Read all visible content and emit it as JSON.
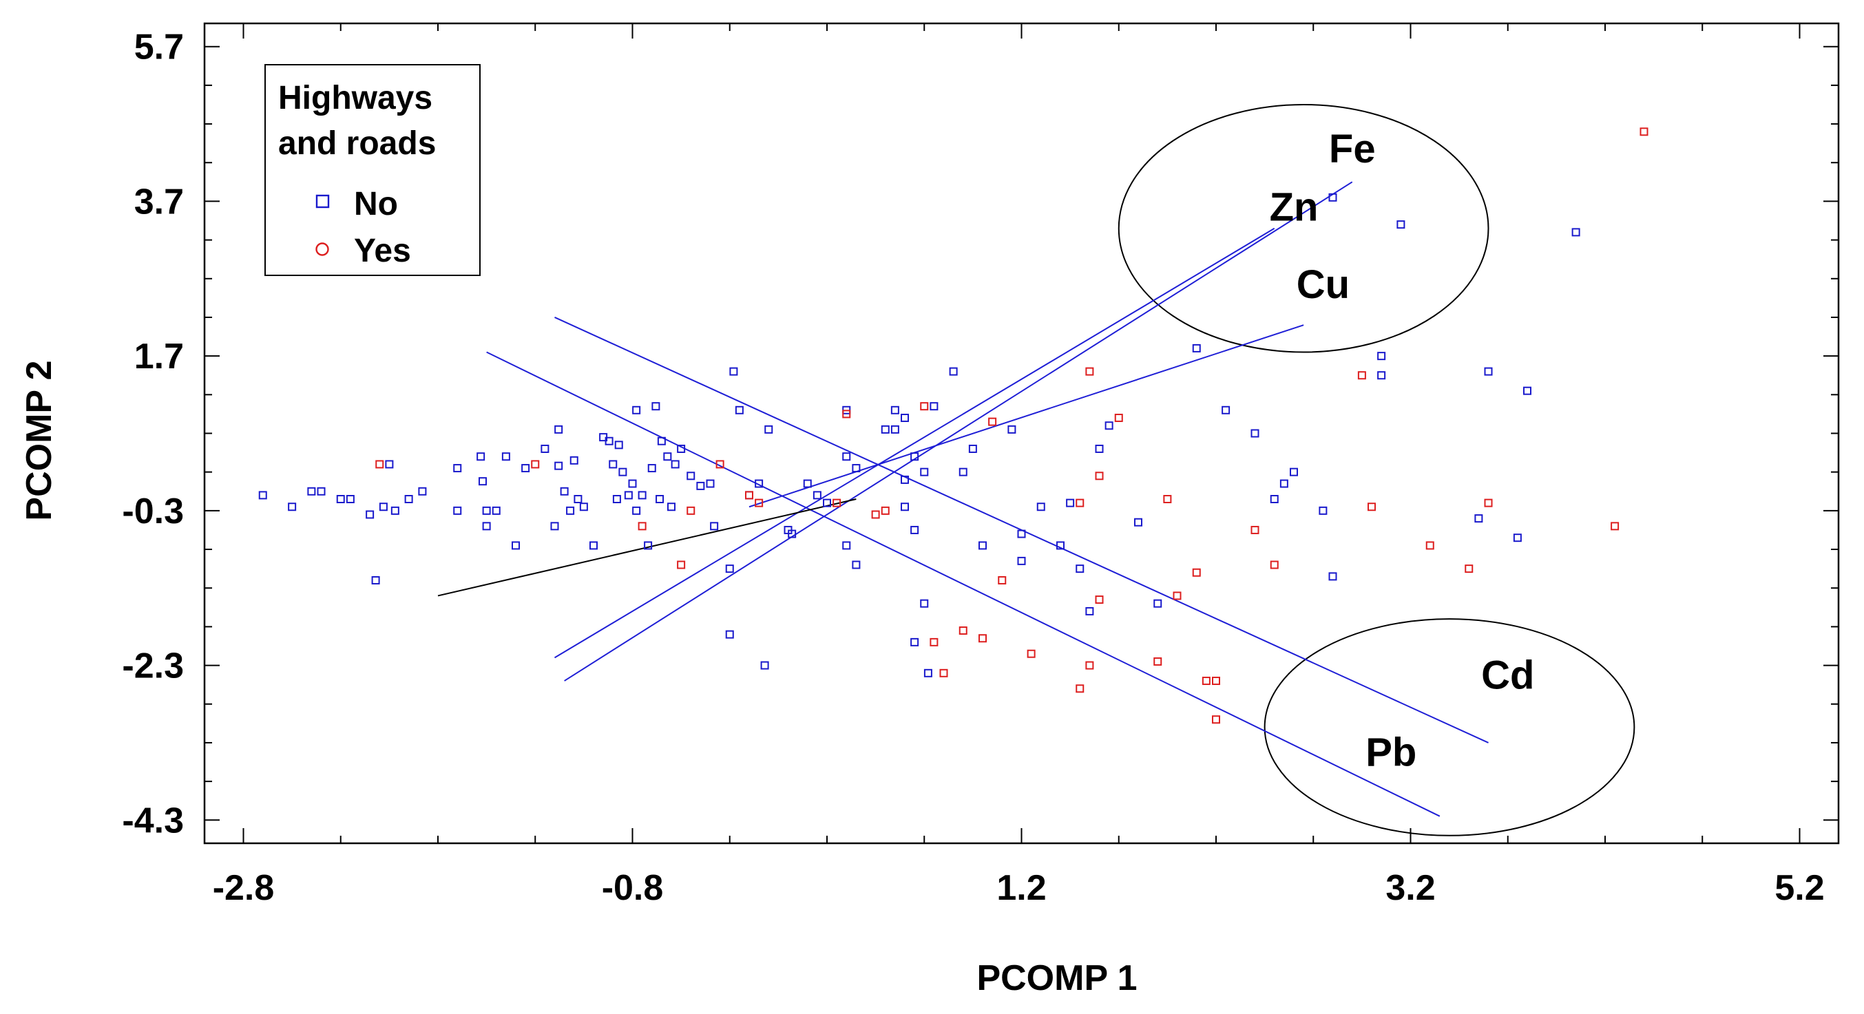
{
  "chart_data": {
    "type": "scatter",
    "title": "",
    "xlabel": "PCOMP 1",
    "ylabel": "PCOMP 2",
    "xlim": [
      -3.0,
      5.4
    ],
    "ylim": [
      -4.6,
      6.0
    ],
    "x_ticks": [
      -2.8,
      -0.8,
      1.2,
      3.2,
      5.2
    ],
    "x_tick_labels": [
      "-2.8",
      "-0.8",
      "1.2",
      "3.2",
      "5.2"
    ],
    "y_ticks": [
      5.7,
      3.7,
      1.7,
      -0.3,
      -2.3,
      -4.3
    ],
    "y_tick_labels": [
      "5.7",
      "3.7",
      "1.7",
      "-0.3",
      "-2.3",
      "-4.3"
    ],
    "grid": false,
    "legend": {
      "title_line1": "Highways",
      "title_line2": "and roads",
      "placement": "top-left",
      "entries": [
        {
          "label": "No",
          "color": "#1a1acc",
          "marker": "square"
        },
        {
          "label": "Yes",
          "color": "#dd1f1f",
          "marker": "circle"
        }
      ]
    },
    "colors": {
      "no": "#1a1acc",
      "yes": "#dd1f1f",
      "vector": "#1f1fd6",
      "unlabeled_vector": "#000000"
    },
    "series": [
      {
        "name": "No",
        "points": [
          [
            -2.7,
            -0.1
          ],
          [
            -2.55,
            -0.25
          ],
          [
            -2.45,
            -0.05
          ],
          [
            -2.4,
            -0.05
          ],
          [
            -2.3,
            -0.15
          ],
          [
            -2.25,
            -0.15
          ],
          [
            -2.15,
            -0.35
          ],
          [
            -2.12,
            -1.2
          ],
          [
            -2.08,
            -0.25
          ],
          [
            -2.05,
            0.3
          ],
          [
            -2.02,
            -0.3
          ],
          [
            -1.95,
            -0.15
          ],
          [
            -1.88,
            -0.05
          ],
          [
            -1.7,
            0.25
          ],
          [
            -1.7,
            -0.3
          ],
          [
            -1.58,
            0.4
          ],
          [
            -1.57,
            0.08
          ],
          [
            -1.55,
            -0.3
          ],
          [
            -1.55,
            -0.5
          ],
          [
            -1.5,
            -0.3
          ],
          [
            -1.45,
            0.4
          ],
          [
            -1.4,
            -0.75
          ],
          [
            -1.35,
            0.25
          ],
          [
            -1.25,
            0.5
          ],
          [
            -1.2,
            -0.5
          ],
          [
            -1.18,
            0.28
          ],
          [
            -1.18,
            0.75
          ],
          [
            -1.15,
            -0.05
          ],
          [
            -1.12,
            -0.3
          ],
          [
            -1.1,
            0.35
          ],
          [
            -1.08,
            -0.15
          ],
          [
            -1.05,
            -0.25
          ],
          [
            -1.0,
            -0.75
          ],
          [
            -0.95,
            0.65
          ],
          [
            -0.92,
            0.6
          ],
          [
            -0.9,
            0.3
          ],
          [
            -0.88,
            -0.15
          ],
          [
            -0.87,
            0.55
          ],
          [
            -0.85,
            0.2
          ],
          [
            -0.82,
            -0.1
          ],
          [
            -0.8,
            0.05
          ],
          [
            -0.78,
            1.0
          ],
          [
            -0.78,
            -0.3
          ],
          [
            -0.75,
            -0.1
          ],
          [
            -0.72,
            -0.75
          ],
          [
            -0.7,
            0.25
          ],
          [
            -0.68,
            1.05
          ],
          [
            -0.66,
            -0.15
          ],
          [
            -0.65,
            0.6
          ],
          [
            -0.62,
            0.4
          ],
          [
            -0.6,
            -0.25
          ],
          [
            -0.58,
            0.3
          ],
          [
            -0.55,
            0.5
          ],
          [
            -0.5,
            0.15
          ],
          [
            -0.45,
            0.02
          ],
          [
            -0.4,
            0.05
          ],
          [
            -0.38,
            -0.5
          ],
          [
            -0.3,
            -1.05
          ],
          [
            -0.3,
            -1.9
          ],
          [
            -0.28,
            1.5
          ],
          [
            -0.25,
            1.0
          ],
          [
            -0.2,
            -0.1
          ],
          [
            -0.15,
            0.05
          ],
          [
            -0.12,
            -2.3
          ],
          [
            -0.1,
            0.75
          ],
          [
            0.0,
            -0.55
          ],
          [
            0.02,
            -0.6
          ],
          [
            0.1,
            0.05
          ],
          [
            0.15,
            -0.1
          ],
          [
            0.2,
            -0.2
          ],
          [
            0.3,
            0.4
          ],
          [
            0.3,
            -0.75
          ],
          [
            0.3,
            1.0
          ],
          [
            0.35,
            0.25
          ],
          [
            0.35,
            -1.0
          ],
          [
            0.5,
            0.75
          ],
          [
            0.55,
            0.75
          ],
          [
            0.55,
            1.0
          ],
          [
            0.6,
            0.1
          ],
          [
            0.6,
            0.9
          ],
          [
            0.6,
            -0.25
          ],
          [
            0.65,
            0.4
          ],
          [
            0.65,
            -0.55
          ],
          [
            0.65,
            -2.0
          ],
          [
            0.7,
            -1.5
          ],
          [
            0.72,
            -2.4
          ],
          [
            0.7,
            0.2
          ],
          [
            0.75,
            1.05
          ],
          [
            0.85,
            1.5
          ],
          [
            0.9,
            0.2
          ],
          [
            0.95,
            0.5
          ],
          [
            1.0,
            -0.75
          ],
          [
            1.15,
            0.75
          ],
          [
            1.2,
            -0.6
          ],
          [
            1.3,
            -0.25
          ],
          [
            1.2,
            -0.95
          ],
          [
            1.4,
            -0.75
          ],
          [
            1.45,
            -0.2
          ],
          [
            1.5,
            -1.05
          ],
          [
            1.55,
            -1.6
          ],
          [
            1.6,
            0.5
          ],
          [
            1.65,
            0.8
          ],
          [
            1.8,
            -0.45
          ],
          [
            1.9,
            -1.5
          ],
          [
            2.1,
            1.8
          ],
          [
            2.25,
            1.0
          ],
          [
            2.4,
            0.7
          ],
          [
            2.5,
            -0.15
          ],
          [
            2.55,
            0.05
          ],
          [
            2.6,
            0.2
          ],
          [
            2.75,
            -0.3
          ],
          [
            2.8,
            -1.15
          ],
          [
            2.8,
            3.75
          ],
          [
            3.05,
            1.7
          ],
          [
            3.05,
            1.45
          ],
          [
            3.15,
            3.4
          ],
          [
            3.55,
            -0.4
          ],
          [
            3.6,
            1.5
          ],
          [
            3.75,
            -0.65
          ],
          [
            3.8,
            1.25
          ],
          [
            4.05,
            3.3
          ]
        ]
      },
      {
        "name": "Yes",
        "points": [
          [
            -2.1,
            0.3
          ],
          [
            -1.3,
            0.3
          ],
          [
            -0.75,
            -0.5
          ],
          [
            -0.55,
            -1.0
          ],
          [
            -0.5,
            -0.3
          ],
          [
            -0.35,
            0.3
          ],
          [
            -0.2,
            -0.1
          ],
          [
            -0.15,
            -0.2
          ],
          [
            0.25,
            -0.2
          ],
          [
            0.3,
            0.95
          ],
          [
            0.45,
            -0.35
          ],
          [
            0.5,
            -0.3
          ],
          [
            0.7,
            1.05
          ],
          [
            0.75,
            -2.0
          ],
          [
            0.8,
            -2.4
          ],
          [
            0.9,
            -1.85
          ],
          [
            1.0,
            -1.95
          ],
          [
            1.05,
            0.85
          ],
          [
            1.1,
            -1.2
          ],
          [
            1.25,
            -2.15
          ],
          [
            1.5,
            -0.2
          ],
          [
            1.5,
            -2.6
          ],
          [
            1.55,
            1.5
          ],
          [
            1.55,
            -2.3
          ],
          [
            1.6,
            -1.45
          ],
          [
            1.6,
            0.15
          ],
          [
            1.7,
            0.9
          ],
          [
            1.9,
            -2.25
          ],
          [
            1.95,
            -0.15
          ],
          [
            2.0,
            -1.4
          ],
          [
            2.1,
            -1.1
          ],
          [
            2.15,
            -2.5
          ],
          [
            2.2,
            -2.5
          ],
          [
            2.2,
            -3.0
          ],
          [
            2.4,
            -0.55
          ],
          [
            2.5,
            -1.0
          ],
          [
            2.95,
            1.45
          ],
          [
            3.0,
            -0.25
          ],
          [
            3.3,
            -0.75
          ],
          [
            3.5,
            -1.05
          ],
          [
            3.6,
            -0.2
          ],
          [
            4.25,
            -0.5
          ],
          [
            4.4,
            4.6
          ]
        ]
      }
    ],
    "vectors": [
      {
        "label": "Fe",
        "x1": -1.15,
        "y1": -2.5,
        "x2": 2.9,
        "y2": 3.95
      },
      {
        "label": "Zn",
        "x1": -1.2,
        "y1": -2.2,
        "x2": 2.5,
        "y2": 3.35
      },
      {
        "label": "Cu",
        "x1": -0.2,
        "y1": -0.25,
        "x2": 2.65,
        "y2": 2.1
      },
      {
        "label": "Cd",
        "x1": -1.2,
        "y1": 2.2,
        "x2": 3.6,
        "y2": -3.3
      },
      {
        "label": "Pb",
        "x1": -1.55,
        "y1": 1.75,
        "x2": 3.35,
        "y2": -4.25
      },
      {
        "label": "",
        "x1": -1.8,
        "y1": -1.4,
        "x2": 0.35,
        "y2": -0.15
      }
    ],
    "annotations": [
      {
        "text": "Fe",
        "x": 2.9,
        "y": 4.2
      },
      {
        "text": "Zn",
        "x": 2.6,
        "y": 3.45
      },
      {
        "text": "Cu",
        "x": 2.75,
        "y": 2.45
      },
      {
        "text": "Cd",
        "x": 3.7,
        "y": -2.6
      },
      {
        "text": "Pb",
        "x": 3.1,
        "y": -3.6
      }
    ],
    "ellipses": [
      {
        "name": "Fe-Zn-Cu-group",
        "cx": 2.65,
        "cy": 3.35,
        "rx": 0.95,
        "ry": 1.6
      },
      {
        "name": "Cd-Pb-group",
        "cx": 3.4,
        "cy": -3.1,
        "rx": 0.95,
        "ry": 1.4
      }
    ]
  }
}
